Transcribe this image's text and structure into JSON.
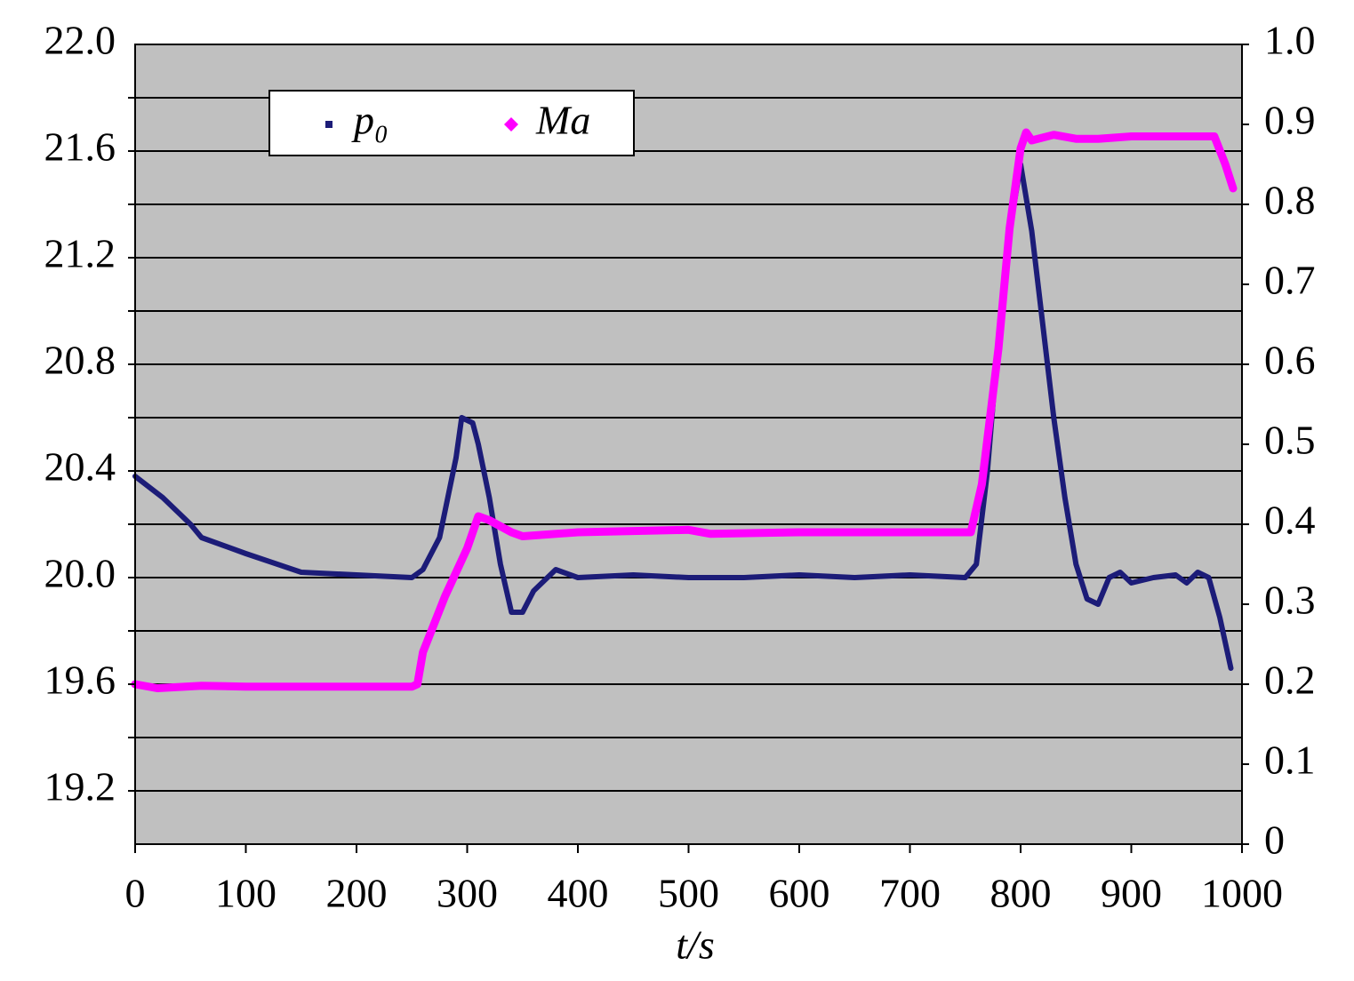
{
  "chart_data": {
    "type": "line",
    "xlabel": "t/s",
    "xlim": [
      0,
      1000
    ],
    "xticks": [
      0,
      100,
      200,
      300,
      400,
      500,
      600,
      700,
      800,
      900,
      1000
    ],
    "ylim": [
      19.0,
      22.0
    ],
    "yticks": [
      19.2,
      {
        "value": 19.6,
        "label": "19.6"
      },
      {
        "value": 20.0,
        "label": "20.0"
      },
      20.4,
      20.8,
      21.2,
      21.6,
      {
        "value": 22.0,
        "label": "22.0"
      }
    ],
    "ygrid": [
      19.2,
      19.4,
      19.6,
      19.8,
      20.0,
      20.2,
      20.4,
      20.6,
      20.8,
      21.0,
      21.2,
      21.4,
      21.6,
      21.8
    ],
    "y2lim": [
      0,
      1.0
    ],
    "y2ticks": [
      0,
      0.1,
      0.2,
      0.3,
      0.4,
      0.5,
      0.6,
      0.7,
      0.8,
      0.9,
      {
        "value": 1.0,
        "label": "1.0"
      }
    ],
    "grid": true,
    "legend": "top-left",
    "series": [
      {
        "name": "p₀",
        "color": "#1c1c78",
        "axis": "y",
        "x": [
          0,
          25,
          50,
          60,
          100,
          150,
          200,
          250,
          260,
          275,
          290,
          295,
          305,
          310,
          320,
          330,
          340,
          350,
          360,
          380,
          400,
          450,
          500,
          550,
          600,
          650,
          700,
          750,
          760,
          770,
          780,
          790,
          800,
          810,
          820,
          830,
          840,
          850,
          860,
          870,
          880,
          890,
          900,
          920,
          940,
          950,
          960,
          970,
          980,
          990
        ],
        "values": [
          20.38,
          20.3,
          20.2,
          20.15,
          20.09,
          20.02,
          20.01,
          20.0,
          20.03,
          20.15,
          20.45,
          20.6,
          20.58,
          20.5,
          20.3,
          20.05,
          19.87,
          19.87,
          19.95,
          20.03,
          20.0,
          20.01,
          20.0,
          20.0,
          20.01,
          20.0,
          20.01,
          20.0,
          20.05,
          20.4,
          20.9,
          21.3,
          21.55,
          21.3,
          20.95,
          20.6,
          20.3,
          20.05,
          19.92,
          19.9,
          20.0,
          20.02,
          19.98,
          20.0,
          20.01,
          19.98,
          20.02,
          20.0,
          19.85,
          19.66
        ]
      },
      {
        "name": "Ma",
        "color": "#ff00ff",
        "axis": "y2",
        "x": [
          0,
          20,
          60,
          100,
          250,
          255,
          260,
          280,
          300,
          310,
          320,
          340,
          350,
          400,
          500,
          520,
          600,
          755,
          765,
          780,
          790,
          800,
          805,
          810,
          830,
          850,
          870,
          900,
          960,
          975,
          985,
          992
        ],
        "values": [
          0.2,
          0.195,
          0.198,
          0.197,
          0.197,
          0.2,
          0.24,
          0.31,
          0.37,
          0.41,
          0.405,
          0.39,
          0.385,
          0.39,
          0.393,
          0.388,
          0.39,
          0.39,
          0.45,
          0.62,
          0.77,
          0.87,
          0.89,
          0.88,
          0.887,
          0.882,
          0.882,
          0.885,
          0.885,
          0.885,
          0.85,
          0.82
        ]
      }
    ]
  }
}
